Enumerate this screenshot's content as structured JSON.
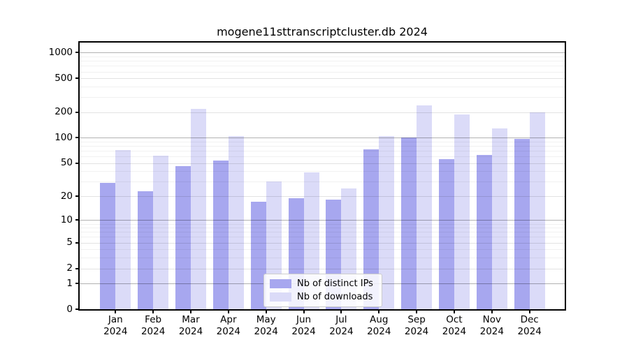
{
  "chart_data": {
    "type": "bar",
    "title": "mogene11sttranscriptcluster.db 2024",
    "categories": [
      "Jan",
      "Feb",
      "Mar",
      "Apr",
      "May",
      "Jun",
      "Jul",
      "Aug",
      "Sep",
      "Oct",
      "Nov",
      "Dec"
    ],
    "category_year": "2024",
    "series": [
      {
        "name": "Nb of distinct IPs",
        "color": "#a7a7ef",
        "values": [
          29,
          23,
          46,
          54,
          17,
          19,
          18,
          73,
          100,
          56,
          63,
          98
        ]
      },
      {
        "name": "Nb of downloads",
        "color": "#dbdbf8",
        "values": [
          72,
          61,
          220,
          105,
          30,
          39,
          25,
          105,
          240,
          190,
          130,
          200
        ]
      }
    ],
    "xlabel": "",
    "ylabel": "",
    "yscale": "log1p",
    "yticks": [
      0,
      1,
      2,
      5,
      10,
      20,
      50,
      100,
      200,
      500,
      1000
    ],
    "minor_yticks": [
      3,
      4,
      6,
      7,
      8,
      9,
      30,
      40,
      60,
      70,
      80,
      90,
      300,
      400,
      600,
      700,
      800,
      900
    ],
    "ylim": [
      0,
      1300
    ],
    "grid": true,
    "legend_position": "lower center",
    "colors": {
      "background": "#ffffff",
      "spine": "#000000",
      "emphasized_grid": "#b3b3b3",
      "major_grid": "#e2e2e2",
      "minor_grid": "#f1f1f1"
    }
  }
}
